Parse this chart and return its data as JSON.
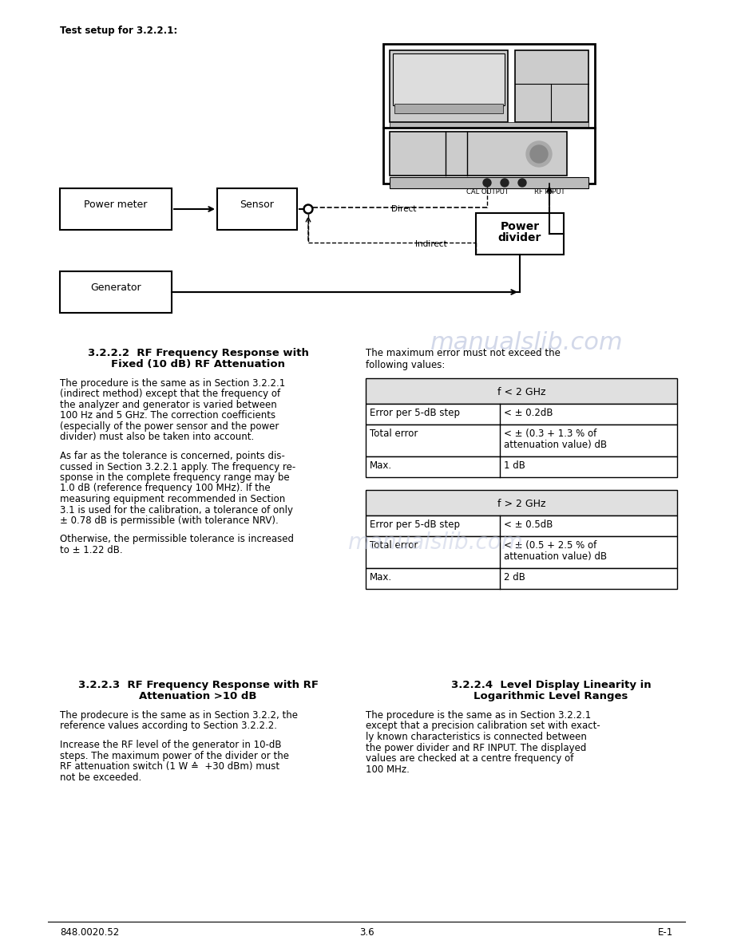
{
  "bg_color": "#ffffff",
  "watermark_text": "manualslib.com",
  "watermark_color": "#c0c8e0",
  "header_label": "Test setup for 3.2.2.1:",
  "footer_left": "848.0020.52",
  "footer_center": "3.6",
  "footer_right": "E-1",
  "section_222_title1": "3.2.2.2  RF Frequency Response with",
  "section_222_title2": "Fixed (10 dB) RF Attenuation",
  "section_222_right_intro": "The maximum error must not exceed the\nfollowing values:",
  "section_222_body": [
    "The procedure is the same as in Section 3.2.2.1",
    "(indirect method) except that the frequency of",
    "the analyzer and generator is varied between",
    "100 Hz and 5 GHz. The correction coefficients",
    "(especially of the power sensor and the power",
    "divider) must also be taken into account.",
    "",
    "As far as the tolerance is concerned, points dis-",
    "cussed in Section 3.2.2.1 apply. The frequency re-",
    "sponse in the complete frequency range may be",
    "1.0 dB (reference frequency 100 MHz). If the",
    "measuring equipment recommended in Section",
    "3.1 is used for the calibration, a tolerance of only",
    "± 0.78 dB is permissible (with tolerance NRV).",
    "",
    "Otherwise, the permissible tolerance is increased",
    "to ± 1.22 dB."
  ],
  "table1_header": "f < 2 GHz",
  "table1_rows": [
    [
      "Error per 5-dB step",
      "< ± 0.2dB"
    ],
    [
      "Total error",
      "< ± (0.3 + 1.3 % of\nattenuation value) dB"
    ],
    [
      "Max.",
      "1 dB"
    ]
  ],
  "table2_header": "f > 2 GHz",
  "table2_rows": [
    [
      "Error per 5-dB step",
      "< ± 0.5dB"
    ],
    [
      "Total error",
      "< ± (0.5 + 2.5 % of\nattenuation value) dB"
    ],
    [
      "Max.",
      "2 dB"
    ]
  ],
  "section_223_title1": "3.2.2.3  RF Frequency Response with RF",
  "section_223_title2": "Attenuation >10 dB",
  "section_223_body": [
    "The prodecure is the same as in Section 3.2.2, the",
    "reference values according to Section 3.2.2.2.",
    "",
    "Increase the RF level of the generator in 10-dB",
    "steps. The maximum power of the divider or the",
    "RF attenuation switch (1 W ≙  +30 dBm) must",
    "not be exceeded."
  ],
  "section_224_title1": "3.2.2.4  Level Display Linearity in",
  "section_224_title2": "Logarithmic Level Ranges",
  "section_224_body": [
    "The procedure is the same as in Section 3.2.2.1",
    "except that a precision calibration set with exact-",
    "ly known characteristics is connected between",
    "the power divider and RF INPUT. The displayed",
    "values are checked at a centre frequency of",
    "100 MHz."
  ]
}
